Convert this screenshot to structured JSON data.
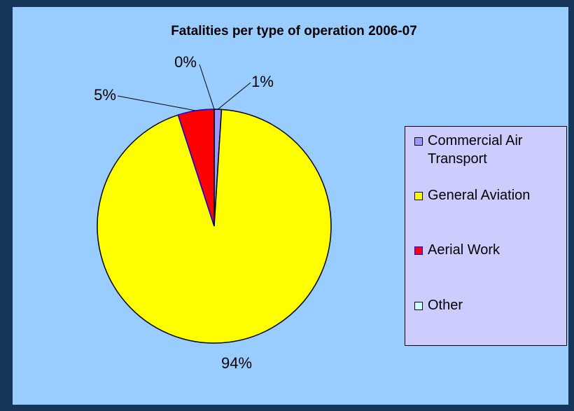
{
  "chart_data": {
    "type": "pie",
    "title": "Fatalities per type of operation 2006-07",
    "categories": [
      "Commercial Air Transport",
      "General Aviation",
      "Aerial Work",
      "Other"
    ],
    "values": [
      1,
      94,
      5,
      0
    ],
    "value_labels": [
      "1%",
      "94%",
      "5%",
      "0%"
    ],
    "colors": [
      "#9999ff",
      "#ffff00",
      "#ff0000",
      "#ccffff"
    ],
    "legend": "right"
  }
}
